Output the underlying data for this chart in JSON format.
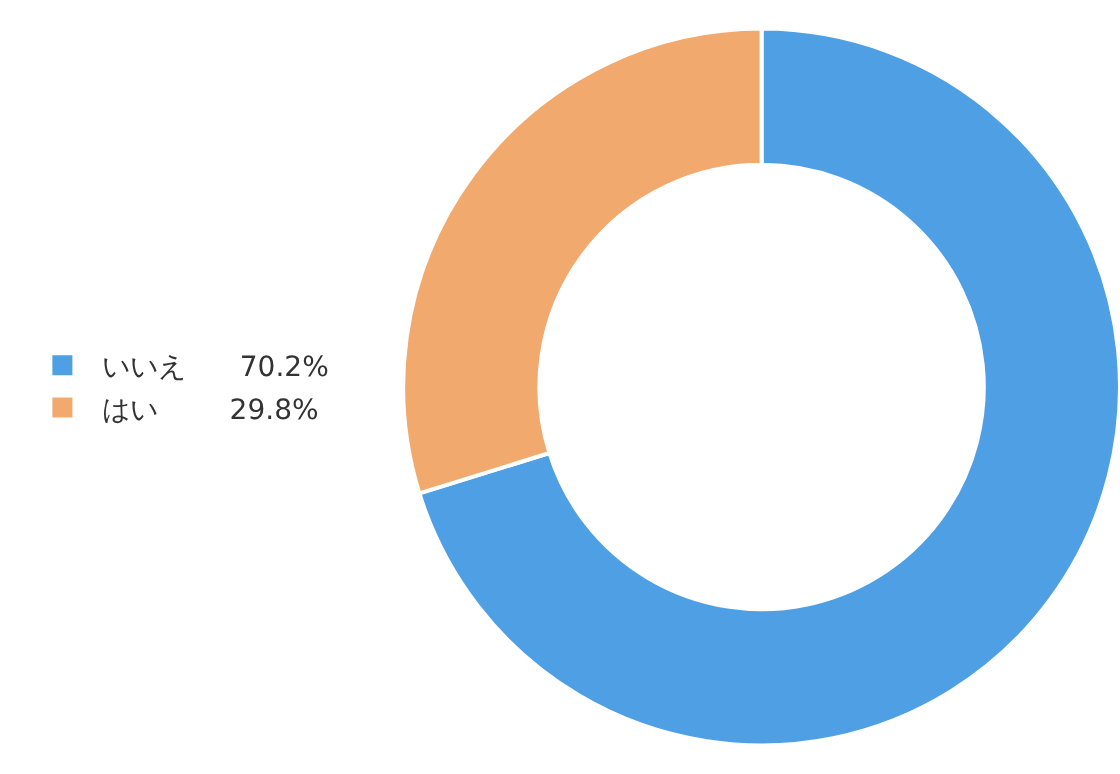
{
  "chart_data": {
    "type": "donut",
    "categories": [
      "いいえ",
      "はい"
    ],
    "values": [
      70.2,
      29.8
    ],
    "colors": [
      "#4f9fe5",
      "#f2a96e"
    ],
    "value_labels": [
      "70.2%",
      "29.8%"
    ],
    "legend": "left"
  }
}
